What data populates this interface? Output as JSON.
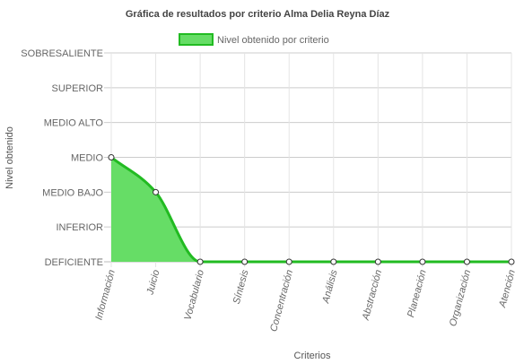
{
  "chart_data": {
    "type": "area",
    "title": "Gráfica de resultados por criterio Alma Delia Reyna Díaz",
    "xlabel": "Criterios",
    "ylabel": "Nivel obtenido",
    "categories": [
      "Información",
      "Juicio",
      "Vocabulario",
      "Síntesis",
      "Concentración",
      "Análisis",
      "Abstracción",
      "Planeación",
      "Organización",
      "Atención"
    ],
    "y_levels": [
      "DEFICIENTE",
      "INFERIOR",
      "MEDIO BAJO",
      "MEDIO",
      "MEDIO ALTO",
      "SUPERIOR",
      "SOBRESALIENTE"
    ],
    "ylim": [
      0,
      6
    ],
    "series": [
      {
        "name": "Nivel obtenido por criterio",
        "values": [
          3,
          2,
          0,
          0,
          0,
          0,
          0,
          0,
          0,
          0
        ]
      }
    ],
    "legend_position": "top",
    "grid": true,
    "colors": {
      "fill": "#66dd66",
      "line": "#22bb22",
      "grid": "#cccccc",
      "text": "#666666",
      "title": "#333333"
    }
  }
}
